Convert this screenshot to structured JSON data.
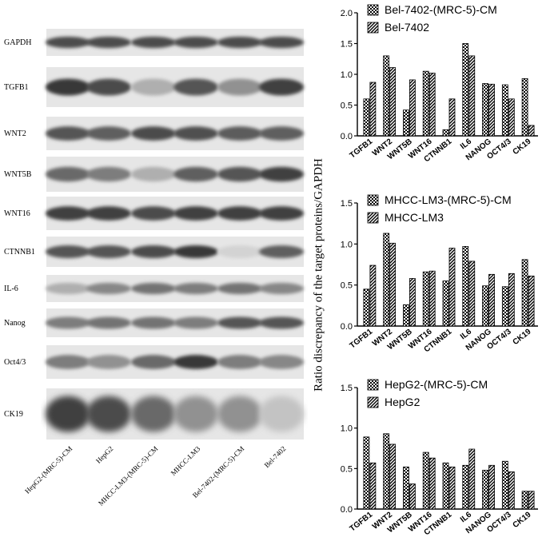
{
  "blot": {
    "proteins": [
      "GAPDH",
      "TGFB1",
      "WNT2",
      "WNT5B",
      "WNT16",
      "CTNNB1",
      "IL-6",
      "Nanog",
      "Oct4/3",
      "CK19"
    ],
    "lanes": [
      "HepG2-(MRC-5)-CM",
      "HepG2",
      "MHCC-LM3-(MRC-5)-CM",
      "MHCC-LM3",
      "Bel-7402-(MRC-5)-CM",
      "Bel-7402"
    ],
    "band_intensity": [
      [
        0.8,
        0.8,
        0.8,
        0.8,
        0.8,
        0.8
      ],
      [
        0.9,
        0.8,
        0.3,
        0.75,
        0.45,
        0.85
      ],
      [
        0.75,
        0.7,
        0.8,
        0.78,
        0.72,
        0.7
      ],
      [
        0.65,
        0.55,
        0.3,
        0.7,
        0.75,
        0.85
      ],
      [
        0.85,
        0.85,
        0.8,
        0.85,
        0.85,
        0.85
      ],
      [
        0.75,
        0.75,
        0.8,
        0.9,
        0.12,
        0.7
      ],
      [
        0.3,
        0.5,
        0.6,
        0.55,
        0.6,
        0.5
      ],
      [
        0.55,
        0.6,
        0.6,
        0.55,
        0.75,
        0.75
      ],
      [
        0.55,
        0.45,
        0.65,
        0.9,
        0.55,
        0.5
      ],
      [
        0.85,
        0.8,
        0.65,
        0.45,
        0.45,
        0.2
      ]
    ]
  },
  "y_axis_title": "Ratio discrepancy of the target proteins/GAPDH",
  "chart_data": [
    {
      "type": "bar",
      "categories": [
        "TGFB1",
        "WNT2",
        "WNT5B",
        "WNT16",
        "CTNNB1",
        "IL6",
        "NANOG",
        "OCT4/3",
        "CK19"
      ],
      "series": [
        {
          "name": "Bel-7402-(MRC-5)-CM",
          "values": [
            0.6,
            1.3,
            0.42,
            1.05,
            0.1,
            1.5,
            0.85,
            0.83,
            0.93
          ]
        },
        {
          "name": "Bel-7402",
          "values": [
            0.87,
            1.11,
            0.91,
            1.02,
            0.6,
            1.3,
            0.84,
            0.6,
            0.17
          ]
        }
      ],
      "ylim": [
        0,
        2.0
      ],
      "yticks": [
        "0.0",
        "0.5",
        "1.0",
        "1.5",
        "2.0"
      ],
      "legend_position": "top-right"
    },
    {
      "type": "bar",
      "categories": [
        "TGFB1",
        "WNT2",
        "WNT5B",
        "WNT16",
        "CTNNB1",
        "IL6",
        "NANOG",
        "OCT4/3",
        "CK19"
      ],
      "series": [
        {
          "name": "MHCC-LM3-(MRC-5)-CM",
          "values": [
            0.45,
            1.13,
            0.26,
            0.66,
            0.55,
            0.97,
            0.49,
            0.48,
            0.81
          ]
        },
        {
          "name": "MHCC-LM3",
          "values": [
            0.74,
            1.01,
            0.58,
            0.67,
            0.95,
            0.79,
            0.63,
            0.64,
            0.61
          ]
        }
      ],
      "ylim": [
        0,
        1.5
      ],
      "yticks": [
        "0.0",
        "0.5",
        "1.0",
        "1.5"
      ],
      "legend_position": "top-right"
    },
    {
      "type": "bar",
      "categories": [
        "TGFB1",
        "WNT2",
        "WNT5B",
        "WNT16",
        "CTNNB1",
        "IL6",
        "NANOG",
        "OCT4/3",
        "CK19"
      ],
      "series": [
        {
          "name": "HepG2-(MRC-5)-CM",
          "values": [
            0.89,
            0.93,
            0.52,
            0.7,
            0.57,
            0.54,
            0.48,
            0.59,
            0.22
          ]
        },
        {
          "name": "HepG2",
          "values": [
            0.57,
            0.8,
            0.31,
            0.63,
            0.52,
            0.74,
            0.54,
            0.46,
            0.22
          ]
        }
      ],
      "ylim": [
        0,
        1.5
      ],
      "yticks": [
        "0.0",
        "0.5",
        "1.0",
        "1.5"
      ],
      "legend_position": "top-right"
    }
  ]
}
